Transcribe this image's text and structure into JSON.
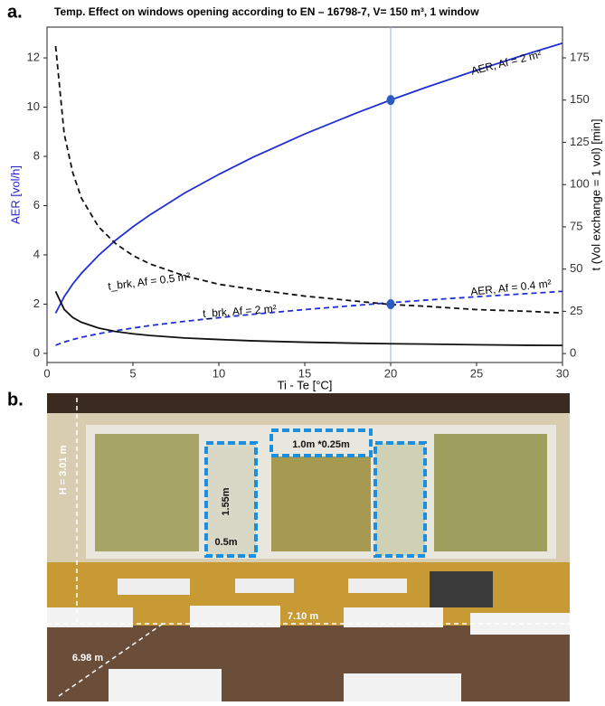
{
  "panel_labels": [
    "a.",
    "b."
  ],
  "chart_data": {
    "type": "line",
    "title": "Temp. Effect on windows opening according to EN – 16798-7, V= 150 m³, 1 window",
    "xlabel": "Ti - Te [°C]",
    "ylabel": "AER [vol/h]",
    "y2label": "t (Vol exchange = 1 vol) [min]",
    "ylabel_color": "#1f1fcf",
    "xlim": [
      0,
      30
    ],
    "ylim": [
      -0.37,
      13.25
    ],
    "y2lim": [
      -5.3,
      193.2
    ],
    "xticks": [
      0,
      5,
      10,
      15,
      20,
      25,
      30
    ],
    "yticks": [
      0,
      2,
      4,
      6,
      8,
      10,
      12
    ],
    "y2ticks": [
      0,
      25,
      50,
      75,
      100,
      125,
      150,
      175
    ],
    "x": [
      0.5,
      1,
      1.5,
      2,
      3,
      4,
      5,
      6,
      8,
      10,
      12,
      15,
      18,
      20,
      22,
      25,
      28,
      30
    ],
    "series": [
      {
        "name": "AER, Af = 2 m²",
        "color": "#1f2fd6",
        "dash": false,
        "values": [
          1.63,
          2.3,
          2.82,
          3.25,
          3.98,
          4.6,
          5.14,
          5.63,
          6.51,
          7.27,
          7.97,
          8.91,
          9.76,
          10.29,
          10.79,
          11.5,
          12.17,
          12.6
        ]
      },
      {
        "name": "AER, Af = 0.4 m²",
        "color": "#1f2fd6",
        "dash": true,
        "values": [
          0.33,
          0.46,
          0.56,
          0.65,
          0.8,
          0.92,
          1.03,
          1.13,
          1.3,
          1.45,
          1.59,
          1.78,
          1.95,
          2.06,
          2.16,
          2.3,
          2.43,
          2.52
        ]
      },
      {
        "name": "t_brk, Af = 0.5 m²",
        "color": "#111111",
        "dash": true,
        "axis": "y2",
        "values": [
          182,
          130,
          107,
          92,
          75,
          65,
          58,
          53,
          46,
          41,
          38,
          34,
          31,
          29,
          28,
          26,
          25,
          24
        ]
      },
      {
        "name": "t_brk, Af = 2 m²",
        "color": "#111111",
        "dash": false,
        "axis": "y2",
        "values": [
          36.8,
          26.1,
          21.3,
          18.5,
          15.1,
          13.0,
          11.7,
          10.7,
          9.2,
          8.3,
          7.5,
          6.7,
          6.1,
          5.8,
          5.6,
          5.2,
          4.9,
          4.8
        ]
      }
    ],
    "markers": {
      "x": [
        20,
        20
      ],
      "values": [
        10.29,
        2.0
      ],
      "color": "#2a5bbf"
    },
    "vline": 20
  },
  "photo": {
    "labels": [
      "H = 3.01 m",
      "1.0m *0.25m",
      "1.55m",
      "0.5m",
      "7.10 m",
      "6.98 m"
    ]
  }
}
